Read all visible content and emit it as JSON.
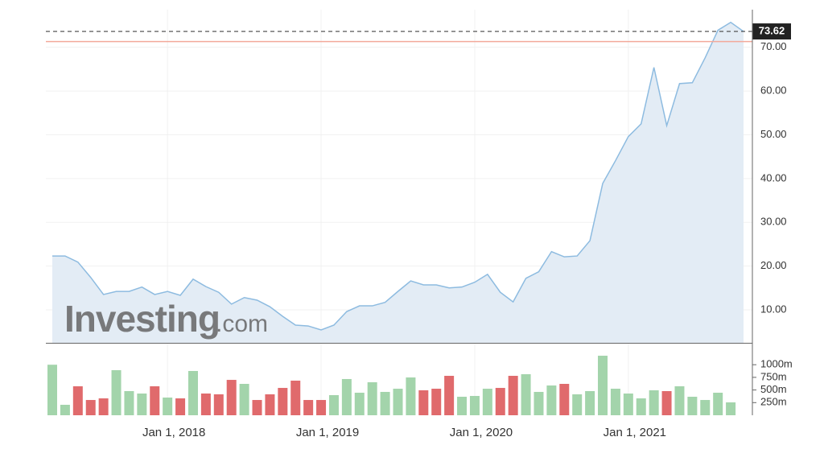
{
  "chart_data": {
    "type": "area-volume",
    "watermark": {
      "brand": "Investing",
      "suffix": ".com"
    },
    "x": [
      "2017-04",
      "2017-05",
      "2017-06",
      "2017-07",
      "2017-08",
      "2017-09",
      "2017-10",
      "2017-11",
      "2017-12",
      "2018-01",
      "2018-02",
      "2018-03",
      "2018-04",
      "2018-05",
      "2018-06",
      "2018-07",
      "2018-08",
      "2018-09",
      "2018-10",
      "2018-11",
      "2018-12",
      "2019-01",
      "2019-02",
      "2019-03",
      "2019-04",
      "2019-05",
      "2019-06",
      "2019-07",
      "2019-08",
      "2019-09",
      "2019-10",
      "2019-11",
      "2019-12",
      "2020-01",
      "2020-02",
      "2020-03",
      "2020-04",
      "2020-05",
      "2020-06",
      "2020-07",
      "2020-08",
      "2020-09",
      "2020-10",
      "2020-11",
      "2020-12",
      "2021-01",
      "2021-02",
      "2021-03",
      "2021-04",
      "2021-05",
      "2021-06",
      "2021-07",
      "2021-08",
      "2021-09",
      "2021-10"
    ],
    "xlim": [
      "2017-04",
      "2021-10"
    ],
    "xticks": [
      {
        "value": "2018-01",
        "label": "Jan 1, 2018"
      },
      {
        "value": "2019-01",
        "label": "Jan 1, 2019"
      },
      {
        "value": "2020-01",
        "label": "Jan 1, 2020"
      },
      {
        "value": "2021-01",
        "label": "Jan 1, 2021"
      }
    ],
    "series": [
      {
        "color": "#8dbbe0",
        "fill": "#e3ecf5",
        "values": [
          22.3,
          22.3,
          20.9,
          17.4,
          13.5,
          14.2,
          14.2,
          15.2,
          13.5,
          14.2,
          13.3,
          17.0,
          15.3,
          14.0,
          11.3,
          12.8,
          12.2,
          10.7,
          8.5,
          6.5,
          6.3,
          5.4,
          6.5,
          9.6,
          10.9,
          10.9,
          11.7,
          14.2,
          16.6,
          15.7,
          15.7,
          15.0,
          15.2,
          16.3,
          18.1,
          14.0,
          11.8,
          17.2,
          18.7,
          23.3,
          22.1,
          22.3,
          25.8,
          38.9,
          44.1,
          49.6,
          52.5,
          65.4,
          52.1,
          61.7,
          61.9,
          67.6,
          73.9,
          75.7,
          73.62
        ]
      },
      {
        "axis": "volume",
        "values": [
          1000,
          207,
          573,
          302,
          334,
          892,
          478,
          430,
          573,
          350,
          334,
          876,
          430,
          414,
          700,
          621,
          302,
          414,
          541,
          685,
          302,
          302,
          398,
          717,
          446,
          653,
          462,
          525,
          748,
          494,
          525,
          780,
          366,
          382,
          525,
          541,
          780,
          812,
          462,
          589,
          621,
          414,
          478,
          1178,
          525,
          430,
          334,
          494,
          478,
          573,
          366,
          302,
          446,
          255,
          null
        ],
        "colors": [
          "#a3d4ab",
          "#a3d4ab",
          "#e06a6c",
          "#e06a6c",
          "#e06a6c",
          "#a3d4ab",
          "#a3d4ab",
          "#a3d4ab",
          "#e06a6c",
          "#a3d4ab",
          "#e06a6c",
          "#a3d4ab",
          "#e06a6c",
          "#e06a6c",
          "#e06a6c",
          "#a3d4ab",
          "#e06a6c",
          "#e06a6c",
          "#e06a6c",
          "#e06a6c",
          "#e06a6c",
          "#e06a6c",
          "#a3d4ab",
          "#a3d4ab",
          "#a3d4ab",
          "#a3d4ab",
          "#a3d4ab",
          "#a3d4ab",
          "#a3d4ab",
          "#e06a6c",
          "#e06a6c",
          "#e06a6c",
          "#a3d4ab",
          "#a3d4ab",
          "#a3d4ab",
          "#e06a6c",
          "#e06a6c",
          "#a3d4ab",
          "#a3d4ab",
          "#a3d4ab",
          "#e06a6c",
          "#a3d4ab",
          "#a3d4ab",
          "#a3d4ab",
          "#a3d4ab",
          "#a3d4ab",
          "#a3d4ab",
          "#a3d4ab",
          "#e06a6c",
          "#a3d4ab",
          "#a3d4ab",
          "#a3d4ab",
          "#a3d4ab",
          "#a3d4ab",
          null
        ]
      }
    ],
    "ylim": [
      2.45,
      78.6
    ],
    "yticks": [
      {
        "value": 10,
        "label": "10.00"
      },
      {
        "value": 20,
        "label": "20.00"
      },
      {
        "value": 30,
        "label": "30.00"
      },
      {
        "value": 40,
        "label": "40.00"
      },
      {
        "value": 50,
        "label": "50.00"
      },
      {
        "value": 60,
        "label": "60.00"
      },
      {
        "value": 70,
        "label": "70.00"
      }
    ],
    "last_price": {
      "value": 73.62,
      "label": "73.62"
    },
    "reference_line": {
      "value": 71.3,
      "color": "#f3a99a"
    },
    "volume_ylim": [
      0,
      1274
    ],
    "volume_ticks": [
      {
        "value": 250,
        "label": "250m"
      },
      {
        "value": 500,
        "label": "500m"
      },
      {
        "value": 750,
        "label": "750m"
      },
      {
        "value": 1000,
        "label": "1000m"
      }
    ],
    "grid": true
  }
}
